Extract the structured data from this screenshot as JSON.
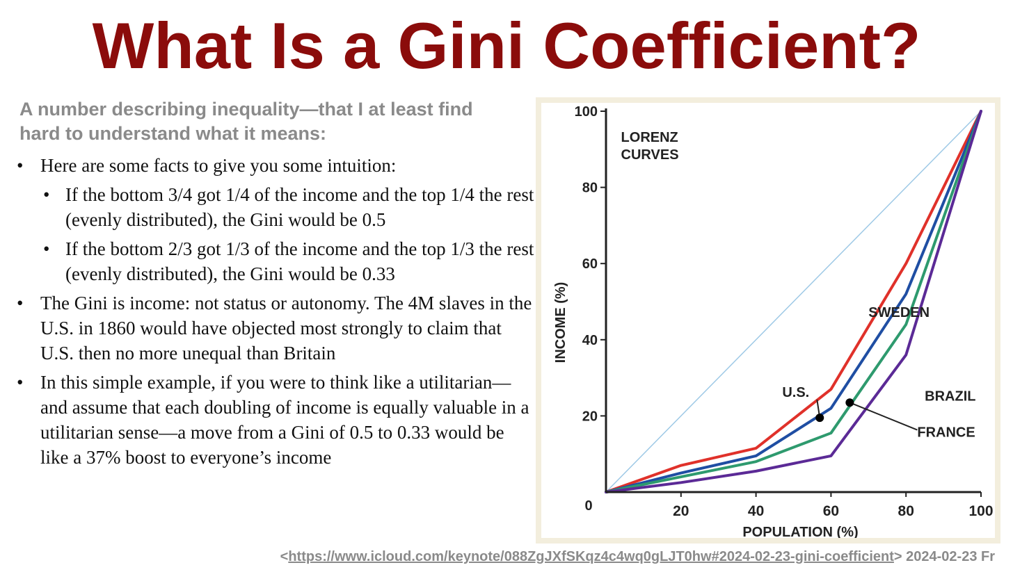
{
  "slide": {
    "title": "What Is a Gini Coefficient?",
    "subtitle": "A number describing inequality—that I at least find hard to understand what it means:"
  },
  "bullets": [
    {
      "text": "Here are some facts to give you some intuition:",
      "level": 1
    },
    {
      "text": "If the bottom 3/4 got 1/4 of the income and the top 1/4 the rest (evenly distributed), the Gini would be 0.5",
      "level": 2
    },
    {
      "text": "If the bottom 2/3 got 1/3 of the income and the top 1/3 the rest (evenly distributed), the Gini would be 0.33",
      "level": 2
    },
    {
      "text": "The Gini is income: not status or autonomy. The 4M slaves in the U.S. in 1860 would have objected most strongly to claim that U.S. then no more unequal than Britain",
      "level": 1
    },
    {
      "text": "In this simple example, if you were to think like a utilitarian—and assume that each doubling of income is equally valuable in a utilitarian sense—a move from a Gini of 0.5 to 0.33 would be like a 37% boost to everyone’s income",
      "level": 1
    }
  ],
  "bullet_glyph": "•",
  "footer": {
    "open": "<",
    "url": "https://www.icloud.com/keynote/088ZgJXfSKqz4c4wq0gLJT0hw#2024-02-23-gini-coefficient",
    "close": ">",
    "date_text": " 2024-02-23 Fr"
  },
  "chart_data": {
    "type": "line",
    "title": "LORENZ CURVES",
    "xlabel": "POPULATION (%)",
    "ylabel": "INCOME (%)",
    "xlim": [
      0,
      100
    ],
    "ylim": [
      0,
      100
    ],
    "x_ticks": [
      "20",
      "40",
      "60",
      "80",
      "100"
    ],
    "y_ticks": [
      "20",
      "40",
      "60",
      "80",
      "100"
    ],
    "origin_label": "0",
    "grid": false,
    "series": [
      {
        "name": "equality",
        "x": [
          0,
          100
        ],
        "y": [
          0,
          100
        ],
        "color": "#9ec9e6"
      },
      {
        "name": "SWEDEN",
        "x": [
          0,
          20,
          40,
          60,
          80,
          100
        ],
        "y": [
          0,
          7,
          11.5,
          27,
          60,
          100
        ],
        "color": "#e0312a"
      },
      {
        "name": "U.S.",
        "x": [
          0,
          20,
          40,
          60,
          80,
          100
        ],
        "y": [
          0,
          5,
          9.5,
          22,
          52,
          100
        ],
        "color": "#1f4ea3"
      },
      {
        "name": "FRANCE",
        "x": [
          0,
          20,
          40,
          60,
          80,
          100
        ],
        "y": [
          0,
          4,
          8,
          15.5,
          44,
          100
        ],
        "color": "#2e9a6e"
      },
      {
        "name": "BRAZIL",
        "x": [
          0,
          20,
          40,
          60,
          80,
          100
        ],
        "y": [
          0,
          2.5,
          5.5,
          9.5,
          36,
          100
        ],
        "color": "#5b2a96"
      }
    ],
    "annotations": [
      {
        "label": "U.S.",
        "text_x": 47,
        "text_y": 25,
        "point_x": 57,
        "point_y": 19.5
      },
      {
        "label": "FRANCE",
        "text_x": 83,
        "text_y": 14.5,
        "point_x": 65,
        "point_y": 23.5
      }
    ],
    "series_labels": [
      {
        "label": "SWEDEN",
        "x": 70,
        "y": 46
      },
      {
        "label": "BRAZIL",
        "x": 85,
        "y": 24
      }
    ],
    "background_color": "#f3eedd"
  }
}
